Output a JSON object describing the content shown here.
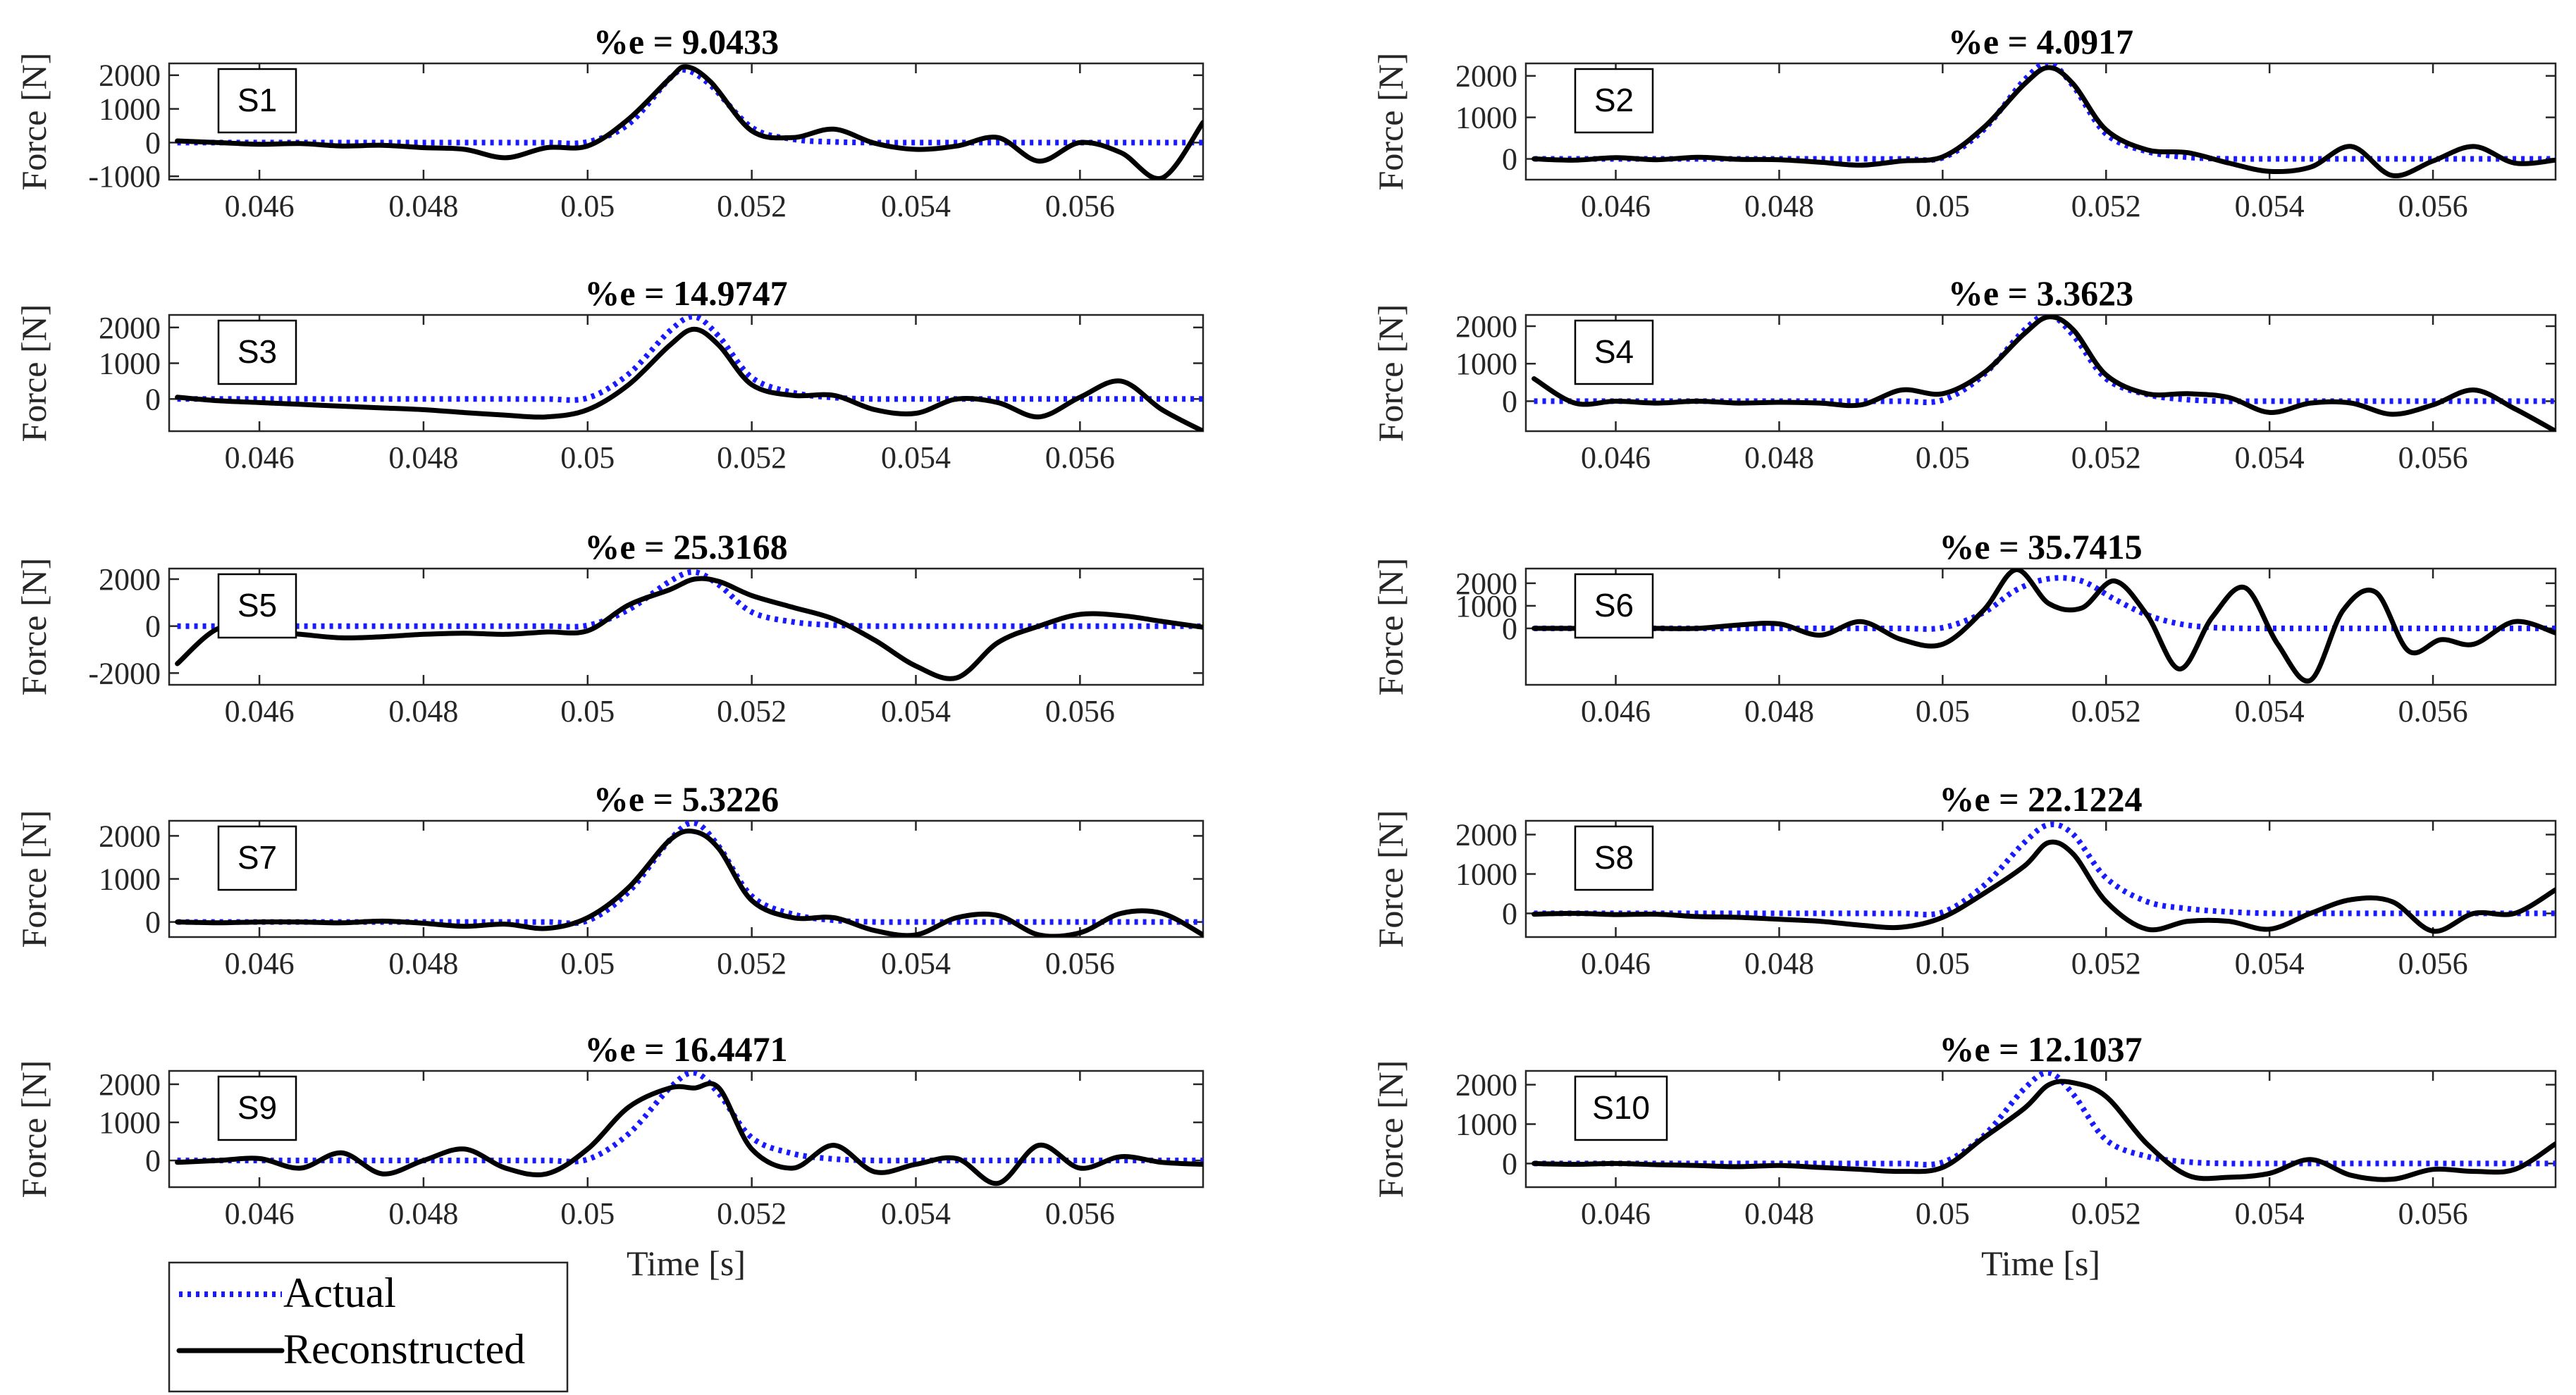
{
  "figure": {
    "x_ticks": [
      0.046,
      0.048,
      0.05,
      0.052,
      0.054,
      0.056
    ],
    "x_tick_labels": [
      "0.046",
      "0.048",
      "0.05",
      "0.052",
      "0.054",
      "0.056"
    ],
    "xlim": [
      0.0449,
      0.0575
    ],
    "xlabel": "Time [s]",
    "ylabel": "Force [N]",
    "legend": {
      "placement": "bottom-left",
      "entries": [
        {
          "label": "Actual",
          "color": "#1a1aff",
          "style": "dotted"
        },
        {
          "label": "Reconstructed",
          "color": "#000000",
          "style": "solid"
        }
      ]
    }
  },
  "chart_data": [
    {
      "type": "line",
      "label": "S1",
      "title": "%e = 9.0433",
      "ylim": [
        -1100,
        2350
      ],
      "yticks": [
        -1000,
        0,
        1000,
        2000
      ],
      "ytick_labels": [
        "-1000",
        "0",
        "1000",
        "2000"
      ],
      "x": [
        0.045,
        0.0455,
        0.046,
        0.0465,
        0.047,
        0.0475,
        0.048,
        0.0485,
        0.049,
        0.0495,
        0.05,
        0.0505,
        0.051,
        0.0512,
        0.0515,
        0.052,
        0.0525,
        0.053,
        0.0535,
        0.054,
        0.0545,
        0.055,
        0.0555,
        0.056,
        0.0565,
        0.057,
        0.0575
      ],
      "series": [
        {
          "name": "Actual",
          "values": [
            0,
            0,
            0,
            0,
            0,
            0,
            0,
            0,
            0,
            0,
            20,
            550,
            1900,
            2150,
            1700,
            450,
            100,
            20,
            0,
            0,
            0,
            0,
            0,
            0,
            0,
            0,
            0
          ]
        },
        {
          "name": "Reconstructed",
          "values": [
            50,
            0,
            -50,
            -30,
            -100,
            -80,
            -150,
            -200,
            -450,
            -150,
            -100,
            700,
            1900,
            2250,
            1800,
            350,
            150,
            400,
            -20,
            -200,
            -100,
            150,
            -550,
            0,
            -300,
            -1050,
            600
          ]
        }
      ]
    },
    {
      "type": "line",
      "label": "S2",
      "title": "%e = 4.0917",
      "ylim": [
        -500,
        2300
      ],
      "yticks": [
        0,
        1000,
        2000
      ],
      "ytick_labels": [
        "0",
        "1000",
        "2000"
      ],
      "x": [
        0.045,
        0.0455,
        0.046,
        0.0465,
        0.047,
        0.0475,
        0.048,
        0.0485,
        0.049,
        0.0495,
        0.05,
        0.0505,
        0.051,
        0.0513,
        0.0516,
        0.052,
        0.0525,
        0.053,
        0.0535,
        0.054,
        0.0545,
        0.055,
        0.0555,
        0.056,
        0.0565,
        0.057,
        0.0575
      ],
      "series": [
        {
          "name": "Actual",
          "values": [
            0,
            0,
            0,
            0,
            0,
            0,
            0,
            0,
            0,
            0,
            30,
            700,
            1900,
            2300,
            1750,
            600,
            180,
            40,
            0,
            0,
            0,
            0,
            0,
            0,
            0,
            0,
            0
          ]
        },
        {
          "name": "Reconstructed",
          "values": [
            0,
            -30,
            30,
            -20,
            40,
            -10,
            -20,
            -80,
            -150,
            -50,
            50,
            750,
            1800,
            2200,
            1800,
            700,
            220,
            150,
            -100,
            -300,
            -200,
            300,
            -400,
            -50,
            300,
            -100,
            -30
          ]
        }
      ]
    },
    {
      "type": "line",
      "label": "S3",
      "title": "%e = 14.9747",
      "ylim": [
        -900,
        2350
      ],
      "yticks": [
        0,
        1000,
        2000
      ],
      "ytick_labels": [
        "0",
        "1000",
        "2000"
      ],
      "x": [
        0.045,
        0.0455,
        0.046,
        0.0465,
        0.047,
        0.0475,
        0.048,
        0.0485,
        0.049,
        0.0495,
        0.05,
        0.0505,
        0.051,
        0.0513,
        0.0516,
        0.052,
        0.0525,
        0.053,
        0.0535,
        0.054,
        0.0545,
        0.055,
        0.0555,
        0.056,
        0.0565,
        0.057,
        0.0575
      ],
      "series": [
        {
          "name": "Actual",
          "values": [
            0,
            0,
            0,
            0,
            0,
            0,
            0,
            0,
            0,
            0,
            30,
            700,
            1900,
            2300,
            1750,
            600,
            180,
            40,
            0,
            0,
            0,
            0,
            0,
            0,
            0,
            0,
            0
          ]
        },
        {
          "name": "Reconstructed",
          "values": [
            50,
            -50,
            -100,
            -150,
            -200,
            -250,
            -300,
            -380,
            -450,
            -500,
            -300,
            400,
            1500,
            1950,
            1500,
            400,
            100,
            100,
            -300,
            -400,
            0,
            -100,
            -500,
            50,
            500,
            -300,
            -900
          ]
        }
      ]
    },
    {
      "type": "line",
      "label": "S4",
      "title": "%e = 3.3623",
      "ylim": [
        -800,
        2300
      ],
      "yticks": [
        0,
        1000,
        2000
      ],
      "ytick_labels": [
        "0",
        "1000",
        "2000"
      ],
      "x": [
        0.045,
        0.0455,
        0.046,
        0.0465,
        0.047,
        0.0475,
        0.048,
        0.0485,
        0.049,
        0.0495,
        0.05,
        0.0505,
        0.051,
        0.0513,
        0.0516,
        0.052,
        0.0525,
        0.053,
        0.0535,
        0.054,
        0.0545,
        0.055,
        0.0555,
        0.056,
        0.0565,
        0.057,
        0.0575
      ],
      "series": [
        {
          "name": "Actual",
          "values": [
            0,
            0,
            0,
            0,
            0,
            0,
            0,
            0,
            0,
            0,
            30,
            700,
            1900,
            2300,
            1750,
            600,
            180,
            40,
            0,
            0,
            0,
            0,
            0,
            0,
            0,
            0,
            0
          ]
        },
        {
          "name": "Reconstructed",
          "values": [
            600,
            -50,
            0,
            -50,
            0,
            -50,
            -30,
            -50,
            -100,
            300,
            200,
            750,
            1800,
            2250,
            1900,
            700,
            200,
            200,
            100,
            -300,
            -50,
            -50,
            -350,
            -100,
            300,
            -200,
            -800
          ]
        }
      ]
    },
    {
      "type": "line",
      "label": "S5",
      "title": "%e = 25.3168",
      "ylim": [
        -2500,
        2450
      ],
      "yticks": [
        -2000,
        0,
        2000
      ],
      "ytick_labels": [
        "-2000",
        "0",
        "2000"
      ],
      "x": [
        0.045,
        0.0455,
        0.046,
        0.0465,
        0.047,
        0.0475,
        0.048,
        0.0485,
        0.049,
        0.0495,
        0.05,
        0.0505,
        0.051,
        0.0513,
        0.0516,
        0.052,
        0.0525,
        0.053,
        0.0535,
        0.054,
        0.0545,
        0.055,
        0.0555,
        0.056,
        0.0565,
        0.057,
        0.0575
      ],
      "series": [
        {
          "name": "Actual",
          "values": [
            0,
            0,
            0,
            0,
            0,
            0,
            0,
            0,
            0,
            0,
            30,
            700,
            1900,
            2300,
            1750,
            600,
            180,
            40,
            0,
            0,
            0,
            0,
            0,
            0,
            0,
            0,
            0
          ]
        },
        {
          "name": "Reconstructed",
          "values": [
            -1600,
            -100,
            -200,
            -350,
            -500,
            -450,
            -350,
            -300,
            -350,
            -250,
            -200,
            900,
            1550,
            2000,
            1900,
            1300,
            800,
            300,
            -600,
            -1700,
            -2200,
            -700,
            0,
            500,
            450,
            200,
            -50
          ]
        }
      ]
    },
    {
      "type": "line",
      "label": "S6",
      "title": "%e = 35.7415",
      "ylim": [
        -2500,
        2650
      ],
      "yticks": [
        0,
        1000,
        2000
      ],
      "ytick_labels": [
        "0",
        "1000",
        "2000"
      ],
      "x": [
        0.045,
        0.0455,
        0.046,
        0.0465,
        0.047,
        0.0475,
        0.048,
        0.0485,
        0.049,
        0.0495,
        0.05,
        0.0505,
        0.0509,
        0.0513,
        0.0517,
        0.0521,
        0.0525,
        0.0529,
        0.0533,
        0.0537,
        0.0541,
        0.0545,
        0.0549,
        0.0553,
        0.0557,
        0.0561,
        0.0565,
        0.057,
        0.0575
      ],
      "series": [
        {
          "name": "Actual",
          "values": [
            0,
            0,
            0,
            0,
            0,
            0,
            0,
            0,
            0,
            0,
            30,
            700,
            1700,
            2200,
            2100,
            1300,
            600,
            200,
            40,
            0,
            0,
            0,
            0,
            0,
            0,
            0,
            0,
            0,
            0
          ]
        },
        {
          "name": "Reconstructed",
          "values": [
            0,
            0,
            0,
            0,
            0,
            150,
            200,
            -300,
            300,
            -500,
            -700,
            800,
            2600,
            1100,
            900,
            2100,
            600,
            -1800,
            500,
            1800,
            -700,
            -2300,
            800,
            1600,
            -1000,
            -500,
            -700,
            300,
            -200
          ]
        }
      ]
    },
    {
      "type": "line",
      "label": "S7",
      "title": "%e = 5.3226",
      "ylim": [
        -350,
        2350
      ],
      "yticks": [
        0,
        1000,
        2000
      ],
      "ytick_labels": [
        "0",
        "1000",
        "2000"
      ],
      "x": [
        0.045,
        0.0455,
        0.046,
        0.0465,
        0.047,
        0.0475,
        0.048,
        0.0485,
        0.049,
        0.0495,
        0.05,
        0.0505,
        0.051,
        0.0513,
        0.0516,
        0.052,
        0.0525,
        0.053,
        0.0535,
        0.054,
        0.0545,
        0.055,
        0.0555,
        0.056,
        0.0565,
        0.057,
        0.0575
      ],
      "series": [
        {
          "name": "Actual",
          "values": [
            0,
            0,
            0,
            0,
            0,
            0,
            0,
            0,
            0,
            0,
            30,
            700,
            1900,
            2300,
            1750,
            600,
            180,
            40,
            0,
            0,
            0,
            0,
            0,
            0,
            0,
            0,
            0
          ]
        },
        {
          "name": "Reconstructed",
          "values": [
            0,
            -20,
            0,
            0,
            -20,
            20,
            -30,
            -100,
            -50,
            -150,
            100,
            800,
            1900,
            2100,
            1700,
            500,
            100,
            100,
            -200,
            -300,
            100,
            150,
            -300,
            -250,
            200,
            200,
            -300
          ]
        }
      ]
    },
    {
      "type": "line",
      "label": "S8",
      "title": "%e = 22.1224",
      "ylim": [
        -600,
        2350
      ],
      "yticks": [
        0,
        1000,
        2000
      ],
      "ytick_labels": [
        "0",
        "1000",
        "2000"
      ],
      "x": [
        0.045,
        0.0455,
        0.046,
        0.0465,
        0.047,
        0.0475,
        0.048,
        0.0485,
        0.049,
        0.0495,
        0.05,
        0.0505,
        0.051,
        0.0513,
        0.0516,
        0.052,
        0.0525,
        0.053,
        0.0535,
        0.054,
        0.0545,
        0.055,
        0.0555,
        0.056,
        0.0565,
        0.057,
        0.0575
      ],
      "series": [
        {
          "name": "Actual",
          "values": [
            0,
            0,
            0,
            0,
            0,
            0,
            0,
            0,
            0,
            0,
            30,
            700,
            1800,
            2250,
            2000,
            900,
            300,
            120,
            40,
            0,
            0,
            0,
            0,
            0,
            0,
            0,
            0
          ]
        },
        {
          "name": "Reconstructed",
          "values": [
            -20,
            0,
            -30,
            -20,
            -80,
            -100,
            -150,
            -200,
            -300,
            -350,
            -100,
            500,
            1200,
            1800,
            1500,
            300,
            -400,
            -200,
            -200,
            -400,
            0,
            350,
            300,
            -450,
            0,
            0,
            600
          ]
        }
      ]
    },
    {
      "type": "line",
      "label": "S9",
      "title": "%e = 16.4471",
      "ylim": [
        -700,
        2350
      ],
      "yticks": [
        0,
        1000,
        2000
      ],
      "ytick_labels": [
        "0",
        "1000",
        "2000"
      ],
      "x": [
        0.045,
        0.0455,
        0.046,
        0.0465,
        0.047,
        0.0475,
        0.048,
        0.0485,
        0.049,
        0.0495,
        0.05,
        0.0505,
        0.051,
        0.0513,
        0.0516,
        0.052,
        0.0525,
        0.053,
        0.0535,
        0.054,
        0.0545,
        0.055,
        0.0555,
        0.056,
        0.0565,
        0.057,
        0.0575
      ],
      "series": [
        {
          "name": "Actual",
          "values": [
            0,
            0,
            0,
            0,
            0,
            0,
            0,
            0,
            0,
            0,
            30,
            700,
            1900,
            2300,
            1750,
            600,
            180,
            40,
            0,
            0,
            0,
            0,
            0,
            0,
            0,
            0,
            0
          ]
        },
        {
          "name": "Reconstructed",
          "values": [
            -50,
            0,
            50,
            -200,
            200,
            -350,
            0,
            300,
            -200,
            -350,
            300,
            1400,
            1900,
            1900,
            1900,
            300,
            -200,
            400,
            -300,
            -100,
            50,
            -600,
            400,
            -200,
            100,
            -50,
            -100
          ]
        }
      ]
    },
    {
      "type": "line",
      "label": "S10",
      "title": "%e = 12.1037",
      "ylim": [
        -600,
        2350
      ],
      "yticks": [
        0,
        1000,
        2000
      ],
      "ytick_labels": [
        "0",
        "1000",
        "2000"
      ],
      "x": [
        0.045,
        0.0455,
        0.046,
        0.0465,
        0.047,
        0.0475,
        0.048,
        0.0485,
        0.049,
        0.0495,
        0.05,
        0.0505,
        0.051,
        0.0513,
        0.0516,
        0.052,
        0.0525,
        0.053,
        0.0535,
        0.054,
        0.0545,
        0.055,
        0.0555,
        0.056,
        0.0565,
        0.057,
        0.0575
      ],
      "series": [
        {
          "name": "Actual",
          "values": [
            0,
            0,
            0,
            0,
            0,
            0,
            0,
            0,
            0,
            0,
            30,
            700,
            1900,
            2300,
            1750,
            600,
            180,
            40,
            0,
            0,
            0,
            0,
            0,
            0,
            0,
            0,
            0
          ]
        },
        {
          "name": "Reconstructed",
          "values": [
            0,
            -20,
            0,
            -30,
            -50,
            -80,
            -50,
            -100,
            -150,
            -200,
            -100,
            650,
            1400,
            2000,
            2050,
            1700,
            500,
            -300,
            -350,
            -250,
            100,
            -300,
            -400,
            -150,
            -200,
            -150,
            500
          ]
        }
      ]
    }
  ]
}
